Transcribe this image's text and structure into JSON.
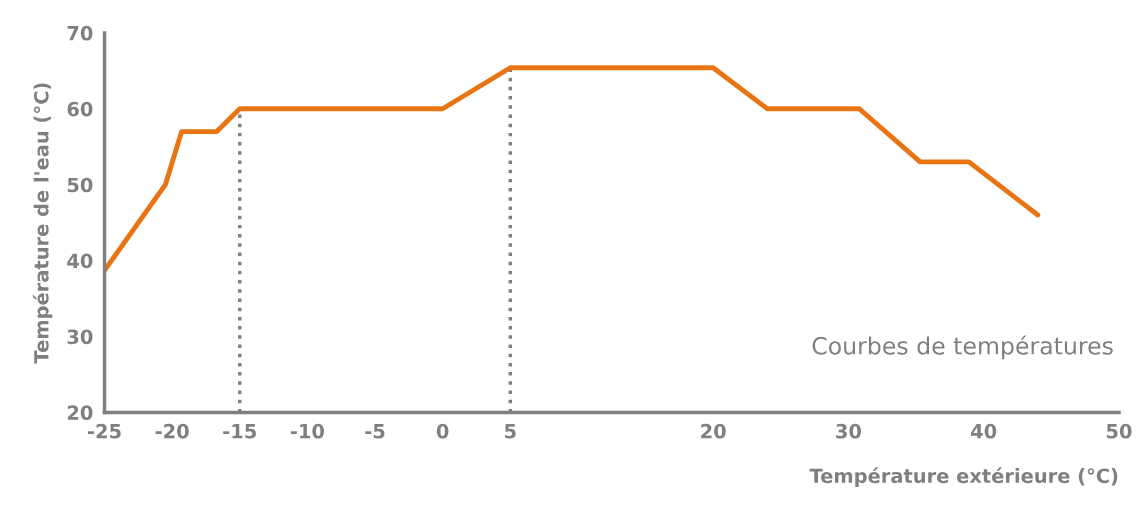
{
  "chart_data": {
    "type": "line",
    "xlabel": "Température extérieure (°C)",
    "ylabel": "Température de l'eau (°C)",
    "annotations": [
      "Courbes de températures"
    ],
    "series": [
      {
        "color": "#e87511",
        "x": [
          -25,
          -20.5,
          -19.3,
          -16.7,
          -15,
          0,
          5,
          20,
          24,
          30.8,
          35.3,
          38.9,
          44
        ],
        "values": [
          38.7,
          50,
          57,
          57,
          60,
          60,
          65.4,
          65.4,
          60,
          60,
          53,
          53,
          46
        ]
      }
    ],
    "xlim": [
      -25,
      50
    ],
    "xticks": [
      -25,
      -20,
      -15,
      -10,
      -5,
      0,
      5,
      20,
      30,
      40,
      50
    ],
    "ylim": [
      20,
      70
    ],
    "yticks": [
      20,
      30,
      40,
      50,
      60,
      70
    ],
    "ref_lines": [
      {
        "axis": "x",
        "value": -15,
        "color": "#808080",
        "line_style": "dotted"
      },
      {
        "axis": "x",
        "value": 5,
        "color": "#808080",
        "line_style": "dotted"
      }
    ],
    "grid": false,
    "legend": false,
    "marker": "none",
    "line_style": "solid"
  }
}
